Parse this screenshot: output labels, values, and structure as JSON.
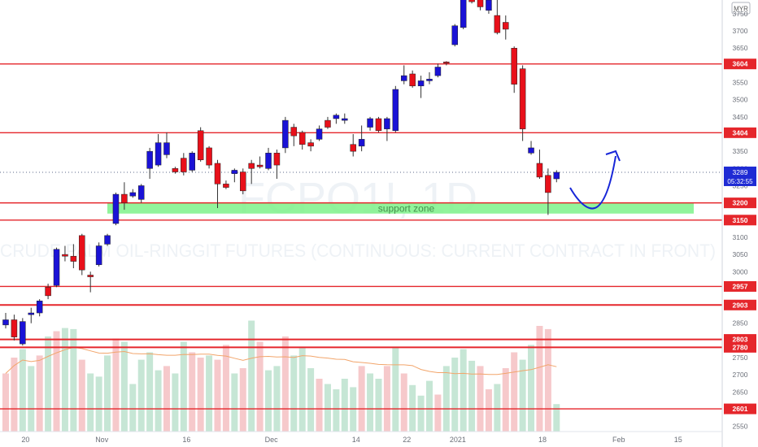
{
  "chart_data": {
    "type": "candlestick",
    "currency_label": "MYR",
    "watermark_symbol": "FCPO1!, 1D",
    "watermark_description": "CRUDE PALM OIL-RINGGIT FUTURES (CONTINUOUS: CURRENT CONTRACT IN FRONT)",
    "annotation_zone": "support zone",
    "price_label_current": "3289",
    "countdown_label": "05:32:55",
    "y_ticks": [
      2550,
      2600,
      2650,
      2700,
      2750,
      2800,
      2850,
      2900,
      2950,
      3000,
      3050,
      3100,
      3150,
      3200,
      3250,
      3300,
      3350,
      3400,
      3450,
      3500,
      3550,
      3600,
      3650,
      3700,
      3750
    ],
    "x_ticks": [
      {
        "label": "20",
        "index": 1
      },
      {
        "label": "Nov",
        "index": 10
      },
      {
        "label": "16",
        "index": 20
      },
      {
        "label": "Dec",
        "index": 30
      },
      {
        "label": "14",
        "index": 40
      },
      {
        "label": "22",
        "index": 46
      },
      {
        "label": "2021",
        "index": 52
      },
      {
        "label": "18",
        "index": 62
      },
      {
        "label": "Feb",
        "index": 71
      },
      {
        "label": "15",
        "index": 78
      }
    ],
    "horizontal_levels": [
      {
        "value": 3604,
        "label": "3604"
      },
      {
        "value": 3404,
        "label": "3404"
      },
      {
        "value": 3200,
        "label": "3200"
      },
      {
        "value": 3150,
        "label": "3150"
      },
      {
        "value": 2957,
        "label": "2957"
      },
      {
        "value": 2903,
        "label": "2903"
      },
      {
        "value": 2803,
        "label": "2803"
      },
      {
        "value": 2780,
        "label": "2780"
      },
      {
        "value": 2601,
        "label": "2601"
      }
    ],
    "support_zone": {
      "from": 3150,
      "to": 3200
    },
    "ylim": [
      2535,
      3790
    ],
    "up_color": "#1a12d6",
    "down_color": "#e8101a",
    "level_color": "#e5262b",
    "candles": [
      {
        "o": 2845,
        "h": 2880,
        "l": 2835,
        "c": 2860
      },
      {
        "o": 2860,
        "h": 2875,
        "l": 2800,
        "c": 2810
      },
      {
        "o": 2790,
        "h": 2865,
        "l": 2785,
        "c": 2855
      },
      {
        "o": 2875,
        "h": 2895,
        "l": 2850,
        "c": 2880
      },
      {
        "o": 2880,
        "h": 2920,
        "l": 2870,
        "c": 2915
      },
      {
        "o": 2955,
        "h": 2965,
        "l": 2920,
        "c": 2930
      },
      {
        "o": 2960,
        "h": 3070,
        "l": 2955,
        "c": 3065
      },
      {
        "o": 3050,
        "h": 3075,
        "l": 3030,
        "c": 3045
      },
      {
        "o": 3045,
        "h": 3080,
        "l": 3010,
        "c": 3030
      },
      {
        "o": 3105,
        "h": 3110,
        "l": 2990,
        "c": 3005
      },
      {
        "o": 2990,
        "h": 3000,
        "l": 2940,
        "c": 2985
      },
      {
        "o": 3020,
        "h": 3085,
        "l": 3015,
        "c": 3075
      },
      {
        "o": 3080,
        "h": 3110,
        "l": 3075,
        "c": 3105
      },
      {
        "o": 3140,
        "h": 3230,
        "l": 3135,
        "c": 3225
      },
      {
        "o": 3225,
        "h": 3260,
        "l": 3180,
        "c": 3200
      },
      {
        "o": 3220,
        "h": 3240,
        "l": 3215,
        "c": 3230
      },
      {
        "o": 3210,
        "h": 3255,
        "l": 3200,
        "c": 3250
      },
      {
        "o": 3300,
        "h": 3360,
        "l": 3270,
        "c": 3350
      },
      {
        "o": 3310,
        "h": 3400,
        "l": 3305,
        "c": 3375
      },
      {
        "o": 3340,
        "h": 3405,
        "l": 3330,
        "c": 3375
      },
      {
        "o": 3300,
        "h": 3305,
        "l": 3285,
        "c": 3290
      },
      {
        "o": 3330,
        "h": 3345,
        "l": 3280,
        "c": 3290
      },
      {
        "o": 3295,
        "h": 3350,
        "l": 3290,
        "c": 3345
      },
      {
        "o": 3410,
        "h": 3420,
        "l": 3320,
        "c": 3325
      },
      {
        "o": 3360,
        "h": 3365,
        "l": 3300,
        "c": 3310
      },
      {
        "o": 3315,
        "h": 3325,
        "l": 3185,
        "c": 3255
      },
      {
        "o": 3255,
        "h": 3265,
        "l": 3240,
        "c": 3245
      },
      {
        "o": 3285,
        "h": 3300,
        "l": 3260,
        "c": 3295
      },
      {
        "o": 3290,
        "h": 3300,
        "l": 3225,
        "c": 3235
      },
      {
        "o": 3315,
        "h": 3325,
        "l": 3255,
        "c": 3300
      },
      {
        "o": 3310,
        "h": 3335,
        "l": 3300,
        "c": 3305
      },
      {
        "o": 3300,
        "h": 3360,
        "l": 3295,
        "c": 3345
      },
      {
        "o": 3345,
        "h": 3355,
        "l": 3270,
        "c": 3310
      },
      {
        "o": 3360,
        "h": 3450,
        "l": 3345,
        "c": 3440
      },
      {
        "o": 3420,
        "h": 3430,
        "l": 3365,
        "c": 3395
      },
      {
        "o": 3405,
        "h": 3410,
        "l": 3355,
        "c": 3370
      },
      {
        "o": 3375,
        "h": 3385,
        "l": 3350,
        "c": 3365
      },
      {
        "o": 3385,
        "h": 3425,
        "l": 3380,
        "c": 3415
      },
      {
        "o": 3440,
        "h": 3450,
        "l": 3415,
        "c": 3420
      },
      {
        "o": 3445,
        "h": 3460,
        "l": 3430,
        "c": 3455
      },
      {
        "o": 3440,
        "h": 3460,
        "l": 3430,
        "c": 3445
      },
      {
        "o": 3370,
        "h": 3400,
        "l": 3335,
        "c": 3350
      },
      {
        "o": 3365,
        "h": 3425,
        "l": 3350,
        "c": 3385
      },
      {
        "o": 3420,
        "h": 3450,
        "l": 3410,
        "c": 3445
      },
      {
        "o": 3445,
        "h": 3450,
        "l": 3405,
        "c": 3410
      },
      {
        "o": 3415,
        "h": 3450,
        "l": 3380,
        "c": 3445
      },
      {
        "o": 3410,
        "h": 3540,
        "l": 3405,
        "c": 3530
      },
      {
        "o": 3555,
        "h": 3600,
        "l": 3545,
        "c": 3570
      },
      {
        "o": 3575,
        "h": 3585,
        "l": 3535,
        "c": 3540
      },
      {
        "o": 3540,
        "h": 3570,
        "l": 3505,
        "c": 3555
      },
      {
        "o": 3555,
        "h": 3580,
        "l": 3545,
        "c": 3560
      },
      {
        "o": 3570,
        "h": 3605,
        "l": 3565,
        "c": 3595
      },
      {
        "o": 3610,
        "h": 3612,
        "l": 3600,
        "c": 3608
      },
      {
        "o": 3660,
        "h": 3720,
        "l": 3655,
        "c": 3715
      },
      {
        "o": 3710,
        "h": 3810,
        "l": 3705,
        "c": 3800
      },
      {
        "o": 3800,
        "h": 3815,
        "l": 3780,
        "c": 3785
      },
      {
        "o": 3800,
        "h": 3810,
        "l": 3760,
        "c": 3770
      },
      {
        "o": 3760,
        "h": 3800,
        "l": 3750,
        "c": 3790
      },
      {
        "o": 3745,
        "h": 3820,
        "l": 3690,
        "c": 3695
      },
      {
        "o": 3725,
        "h": 3745,
        "l": 3675,
        "c": 3705
      },
      {
        "o": 3650,
        "h": 3655,
        "l": 3520,
        "c": 3545
      },
      {
        "o": 3590,
        "h": 3600,
        "l": 3380,
        "c": 3415
      },
      {
        "o": 3345,
        "h": 3380,
        "l": 3340,
        "c": 3360
      },
      {
        "o": 3315,
        "h": 3355,
        "l": 3270,
        "c": 3275
      },
      {
        "o": 3280,
        "h": 3300,
        "l": 3165,
        "c": 3230
      },
      {
        "o": 3270,
        "h": 3295,
        "l": 3260,
        "c": 3289
      }
    ],
    "volume": [
      {
        "v": 0.55,
        "up": false
      },
      {
        "v": 0.7,
        "up": false
      },
      {
        "v": 0.78,
        "up": true
      },
      {
        "v": 0.62,
        "up": true
      },
      {
        "v": 0.72,
        "up": false
      },
      {
        "v": 0.9,
        "up": true
      },
      {
        "v": 0.95,
        "up": false
      },
      {
        "v": 0.98,
        "up": true
      },
      {
        "v": 0.97,
        "up": true
      },
      {
        "v": 0.68,
        "up": false
      },
      {
        "v": 0.55,
        "up": true
      },
      {
        "v": 0.52,
        "up": true
      },
      {
        "v": 0.72,
        "up": true
      },
      {
        "v": 0.88,
        "up": false
      },
      {
        "v": 0.85,
        "up": true
      },
      {
        "v": 0.45,
        "up": true
      },
      {
        "v": 0.68,
        "up": true
      },
      {
        "v": 0.75,
        "up": true
      },
      {
        "v": 0.58,
        "up": true
      },
      {
        "v": 0.62,
        "up": false
      },
      {
        "v": 0.55,
        "up": true
      },
      {
        "v": 0.85,
        "up": true
      },
      {
        "v": 0.75,
        "up": false
      },
      {
        "v": 0.7,
        "up": false
      },
      {
        "v": 0.72,
        "up": true
      },
      {
        "v": 0.68,
        "up": false
      },
      {
        "v": 0.82,
        "up": false
      },
      {
        "v": 0.55,
        "up": true
      },
      {
        "v": 0.6,
        "up": false
      },
      {
        "v": 1.05,
        "up": true
      },
      {
        "v": 0.85,
        "up": false
      },
      {
        "v": 0.58,
        "up": true
      },
      {
        "v": 0.62,
        "up": true
      },
      {
        "v": 0.9,
        "up": false
      },
      {
        "v": 0.72,
        "up": true
      },
      {
        "v": 0.8,
        "up": true
      },
      {
        "v": 0.6,
        "up": true
      },
      {
        "v": 0.5,
        "up": false
      },
      {
        "v": 0.45,
        "up": true
      },
      {
        "v": 0.4,
        "up": true
      },
      {
        "v": 0.5,
        "up": true
      },
      {
        "v": 0.42,
        "up": true
      },
      {
        "v": 0.62,
        "up": false
      },
      {
        "v": 0.55,
        "up": true
      },
      {
        "v": 0.5,
        "up": true
      },
      {
        "v": 0.62,
        "up": false
      },
      {
        "v": 0.8,
        "up": true
      },
      {
        "v": 0.55,
        "up": false
      },
      {
        "v": 0.44,
        "up": true
      },
      {
        "v": 0.34,
        "up": true
      },
      {
        "v": 0.48,
        "up": true
      },
      {
        "v": 0.35,
        "up": false
      },
      {
        "v": 0.62,
        "up": true
      },
      {
        "v": 0.7,
        "up": true
      },
      {
        "v": 0.78,
        "up": true
      },
      {
        "v": 0.67,
        "up": true
      },
      {
        "v": 0.62,
        "up": false
      },
      {
        "v": 0.4,
        "up": false
      },
      {
        "v": 0.45,
        "up": true
      },
      {
        "v": 0.6,
        "up": false
      },
      {
        "v": 0.75,
        "up": false
      },
      {
        "v": 0.68,
        "up": true
      },
      {
        "v": 0.82,
        "up": true
      },
      {
        "v": 1.0,
        "up": false
      },
      {
        "v": 0.97,
        "up": false
      },
      {
        "v": 0.26,
        "up": true
      }
    ]
  }
}
